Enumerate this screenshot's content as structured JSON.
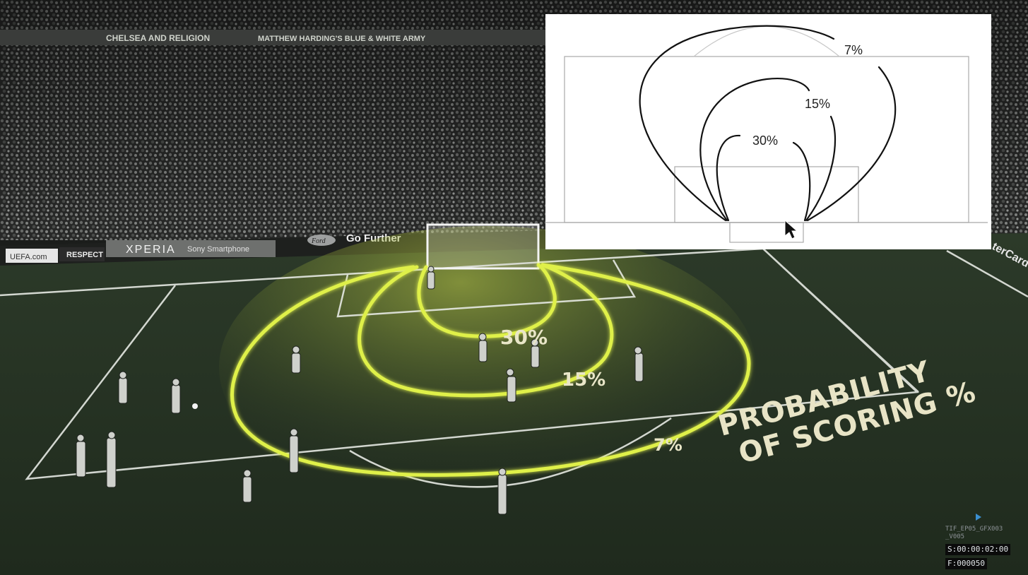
{
  "inset": {
    "label_outer": "7%",
    "label_middle": "15%",
    "label_inner": "30%"
  },
  "pitch_overlay": {
    "label_inner": "30%",
    "label_middle": "15%",
    "label_outer": "7%",
    "caption_line1": "PROBABILITY",
    "caption_line2": "OF SCORING %"
  },
  "ad_boards": {
    "uefa": "UEFA.com",
    "respect": "RESPECT",
    "xperia": "XPERIA",
    "sony": "Sony Smartphone",
    "ford_logo": "Ford",
    "go_further": "Go Further",
    "master_card": "terCard",
    "banner_left": "CHELSEA AND RELIGION",
    "banner_right": "MATTHEW HARDING'S BLUE & WHITE ARMY"
  },
  "video_info": {
    "clip_name_line1": "TIF_EP05_GFX003",
    "clip_name_line2": "_V005",
    "timecode_s": "S:00:00:02:00",
    "timecode_f": "F:000050"
  },
  "colors": {
    "heat_yellow": "#dff04a",
    "pitch_green": "#2f3b2c",
    "inset_bg": "#ffffff",
    "timecode_bg": "#0b0b0b"
  }
}
